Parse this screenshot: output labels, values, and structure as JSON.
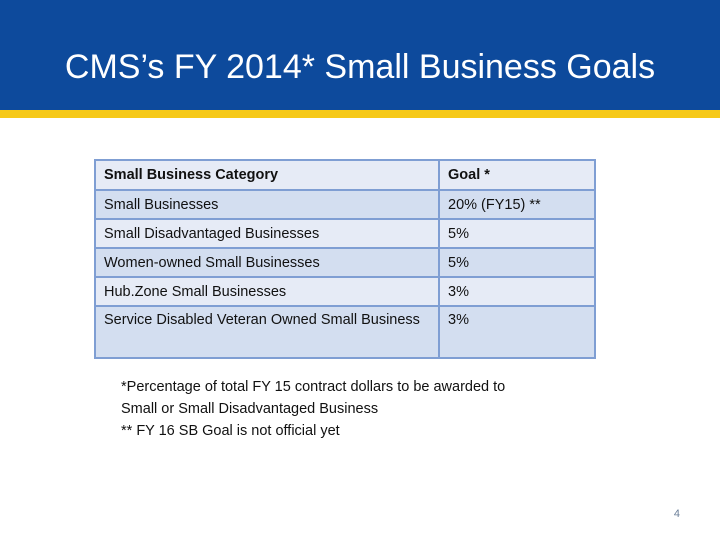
{
  "slide": {
    "title": "CMS’s FY 2014* Small Business Goals",
    "page_number": "4",
    "colors": {
      "title_bar": "#0d4a9c",
      "accent_stripe": "#f6c919",
      "table_border": "#7f9ed3",
      "row_light": "#e6ebf6",
      "row_dark": "#d3def0"
    }
  },
  "table": {
    "headers": [
      "Small Business Category",
      "Goal *"
    ],
    "rows": [
      [
        "Small Businesses",
        "20% (FY15) **"
      ],
      [
        "Small Disadvantaged Businesses",
        "5%"
      ],
      [
        "Women-owned Small Businesses",
        "5%"
      ],
      [
        "Hub.Zone Small Businesses",
        "3%"
      ],
      [
        "Service Disabled Veteran Owned Small Business",
        "3%"
      ]
    ]
  },
  "notes": {
    "line1": "*Percentage of total FY 15 contract dollars to be awarded to",
    "line2": "Small or Small Disadvantaged Business",
    "line3": "**   FY 16 SB Goal is not official yet"
  }
}
